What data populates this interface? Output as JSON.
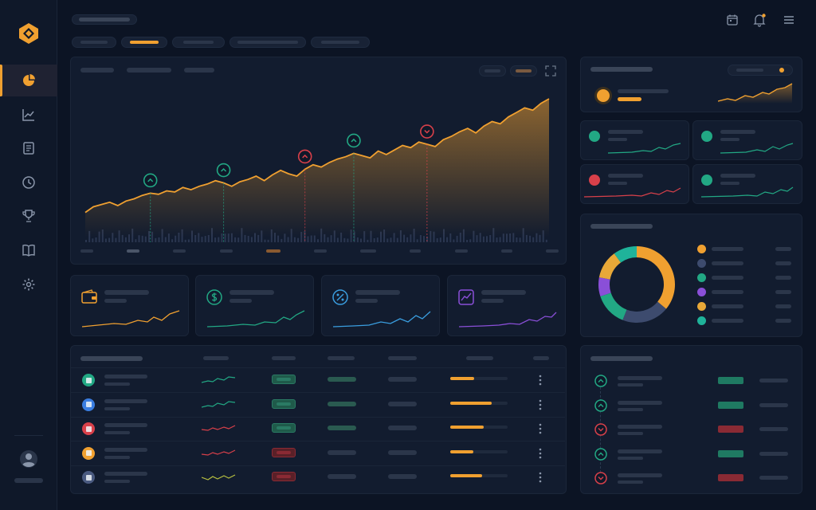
{
  "sidebar": {
    "items": [
      {
        "name": "sidebar-item-portfolio",
        "icon": "pie-chart-icon",
        "active": true
      },
      {
        "name": "sidebar-item-analytics",
        "icon": "line-chart-icon",
        "active": false
      },
      {
        "name": "sidebar-item-reports",
        "icon": "document-icon",
        "active": false
      },
      {
        "name": "sidebar-item-history",
        "icon": "clock-icon",
        "active": false
      },
      {
        "name": "sidebar-item-rewards",
        "icon": "trophy-icon",
        "active": false
      },
      {
        "name": "sidebar-item-library",
        "icon": "book-icon",
        "active": false
      },
      {
        "name": "sidebar-item-settings",
        "icon": "gear-icon",
        "active": false
      }
    ]
  },
  "header": {
    "icons": [
      "calendar-icon",
      "bell-icon",
      "menu-icon"
    ]
  },
  "colors": {
    "accent": "#f0a030",
    "green": "#22a884",
    "red": "#d8404a",
    "blue": "#3a7de0",
    "purple": "#8a4fd8",
    "teal": "#1fb39a"
  },
  "kpis": [
    {
      "icon": "wallet-icon",
      "color": "#f0a030"
    },
    {
      "icon": "dollar-icon",
      "color": "#22a884"
    },
    {
      "icon": "percent-icon",
      "color": "#3a9ee0"
    },
    {
      "icon": "trend-icon",
      "color": "#8a4fd8"
    }
  ],
  "assets": [
    {
      "icon": "m-icon",
      "color": "#22a884",
      "trend": "up",
      "status": "green",
      "progress": 0.42
    },
    {
      "icon": "a-icon",
      "color": "#3a7de0",
      "trend": "up",
      "status": "green",
      "progress": 0.72
    },
    {
      "icon": "t-icon",
      "color": "#d8404a",
      "trend": "down",
      "status": "green",
      "progress": 0.58
    },
    {
      "icon": "amazon-icon",
      "color": "#f0a030",
      "trend": "down",
      "status": "red",
      "progress": 0.4
    },
    {
      "icon": "windows-icon",
      "color": "#4a5a80",
      "trend": "mixed",
      "status": "red",
      "progress": 0.56
    }
  ],
  "transactions": [
    {
      "direction": "up",
      "status": "green"
    },
    {
      "direction": "up",
      "status": "green"
    },
    {
      "direction": "down",
      "status": "red"
    },
    {
      "direction": "up",
      "status": "green"
    },
    {
      "direction": "down",
      "status": "red"
    }
  ],
  "allocation": [
    {
      "color": "#f0a030",
      "value": 0.36
    },
    {
      "color": "#3d4b6e",
      "value": 0.2
    },
    {
      "color": "#22a884",
      "value": 0.14
    },
    {
      "color": "#8a4fd8",
      "value": 0.08
    },
    {
      "color": "#e8a838",
      "value": 0.12
    },
    {
      "color": "#1fb39a",
      "value": 0.1
    }
  ],
  "chart_data": {
    "type": "area",
    "values": [
      8,
      13,
      15,
      17,
      14,
      18,
      20,
      23,
      25,
      24,
      27,
      26,
      30,
      28,
      31,
      33,
      36,
      34,
      31,
      35,
      37,
      40,
      36,
      41,
      45,
      42,
      40,
      46,
      50,
      48,
      52,
      55,
      57,
      60,
      58,
      56,
      62,
      59,
      63,
      67,
      65,
      70,
      68,
      66,
      72,
      75,
      79,
      82,
      78,
      84,
      88,
      86,
      92,
      96,
      100,
      98,
      104,
      108
    ],
    "markers": [
      {
        "index": 8,
        "direction": "up",
        "color": "#22a884"
      },
      {
        "index": 17,
        "direction": "up",
        "color": "#22a884"
      },
      {
        "index": 27,
        "direction": "up",
        "color": "#d8404a"
      },
      {
        "index": 33,
        "direction": "up",
        "color": "#22a884"
      },
      {
        "index": 42,
        "direction": "down",
        "color": "#d8404a"
      }
    ]
  }
}
